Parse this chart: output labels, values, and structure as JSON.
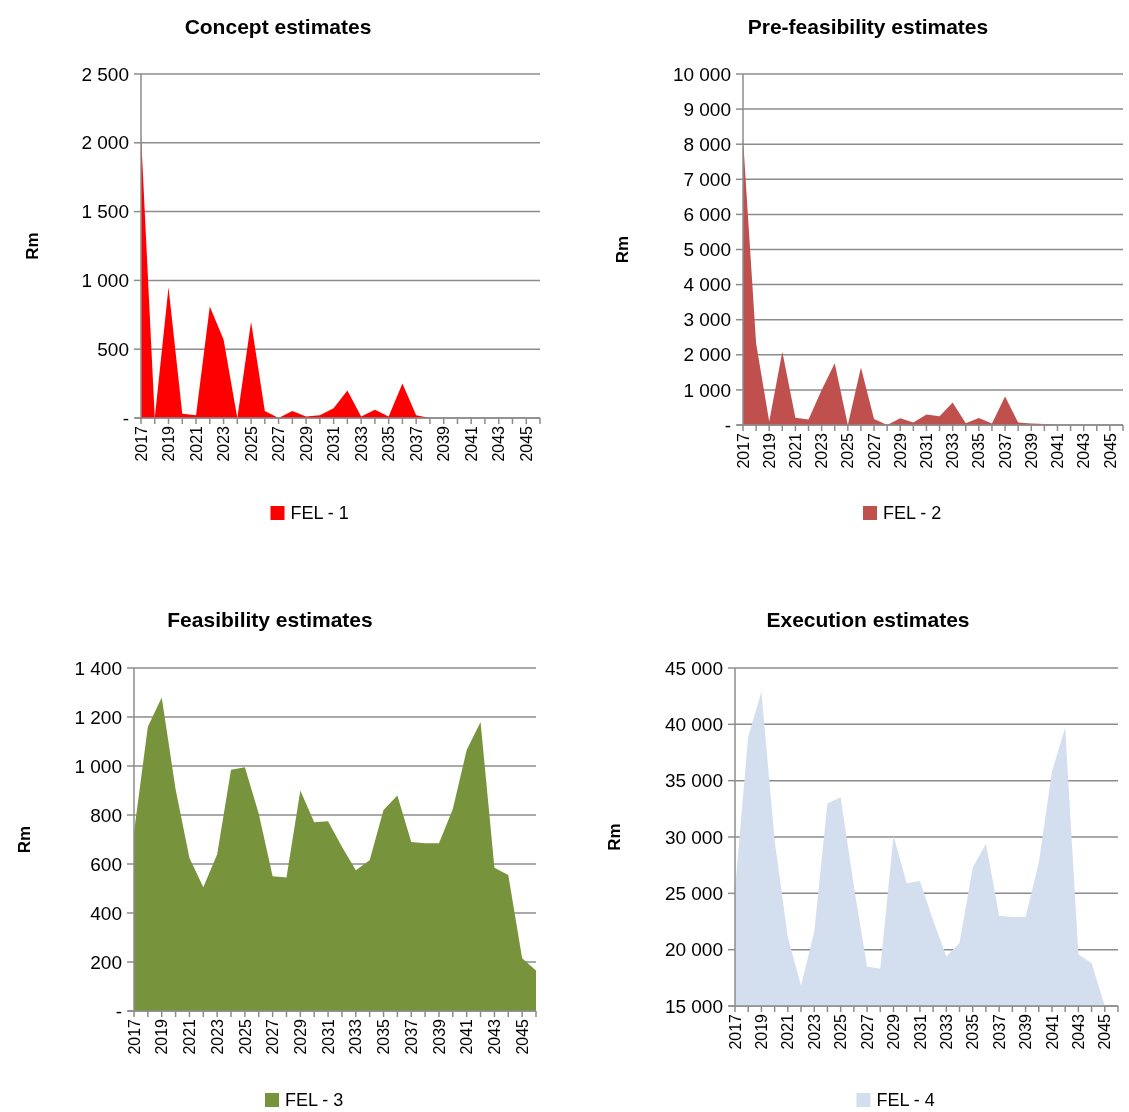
{
  "chart_data": [
    {
      "type": "area",
      "title": "Concept estimates",
      "ylabel": "Rm",
      "categories": [
        "2017",
        null,
        "2019",
        null,
        "2021",
        null,
        "2023",
        null,
        "2025",
        null,
        "2027",
        null,
        "2029",
        null,
        "2031",
        null,
        "2033",
        null,
        "2035",
        null,
        "2037",
        null,
        "2039",
        null,
        "2041",
        null,
        "2043",
        null,
        "2045",
        null
      ],
      "series": [
        {
          "name": "FEL - 1",
          "color": "#ff0000",
          "values": [
            2060,
            0,
            950,
            30,
            20,
            810,
            570,
            0,
            700,
            50,
            0,
            50,
            10,
            20,
            70,
            200,
            10,
            60,
            10,
            250,
            20,
            0,
            0,
            0,
            0,
            0,
            0,
            0,
            0,
            0
          ]
        }
      ],
      "ylim": [
        0,
        2500
      ],
      "yticks": [
        {
          "value": 0,
          "label": "-"
        },
        500,
        {
          "value": 1000,
          "label": "1 000"
        },
        {
          "value": 1500,
          "label": "1 500"
        },
        {
          "value": 2000,
          "label": "2 000"
        },
        {
          "value": 2500,
          "label": "2 500"
        }
      ],
      "grid": "y",
      "legend": "bottom"
    },
    {
      "type": "area",
      "title": "Pre-feasibility estimates",
      "ylabel": "Rm",
      "categories": [
        "2017",
        null,
        "2019",
        null,
        "2021",
        null,
        "2023",
        null,
        "2025",
        null,
        "2027",
        null,
        "2029",
        null,
        "2031",
        null,
        "2033",
        null,
        "2035",
        null,
        "2037",
        null,
        "2039",
        null,
        "2041",
        null,
        "2043",
        null,
        "2045",
        null
      ],
      "series": [
        {
          "name": "FEL - 2",
          "color": "#c0504d",
          "values": [
            8170,
            2330,
            100,
            2090,
            210,
            160,
            1000,
            1760,
            0,
            1640,
            170,
            0,
            190,
            70,
            300,
            250,
            640,
            50,
            200,
            40,
            810,
            70,
            40,
            30,
            0,
            0,
            0,
            0,
            0,
            0
          ]
        }
      ],
      "ylim": [
        0,
        10000
      ],
      "yticks": [
        {
          "value": 0,
          "label": "-"
        },
        {
          "value": 1000,
          "label": "1 000"
        },
        {
          "value": 2000,
          "label": "2 000"
        },
        {
          "value": 3000,
          "label": "3 000"
        },
        {
          "value": 4000,
          "label": "4 000"
        },
        {
          "value": 5000,
          "label": "5 000"
        },
        {
          "value": 6000,
          "label": "6 000"
        },
        {
          "value": 7000,
          "label": "7 000"
        },
        {
          "value": 8000,
          "label": "8 000"
        },
        {
          "value": 9000,
          "label": "9 000"
        },
        {
          "value": 10000,
          "label": "10 000"
        }
      ],
      "grid": "y",
      "legend": "bottom"
    },
    {
      "type": "area",
      "title": "Feasibility estimates",
      "ylabel": "Rm",
      "categories": [
        "2017",
        null,
        "2019",
        null,
        "2021",
        null,
        "2023",
        null,
        "2025",
        null,
        "2027",
        null,
        "2029",
        null,
        "2031",
        null,
        "2033",
        null,
        "2035",
        null,
        "2037",
        null,
        "2039",
        null,
        "2041",
        null,
        "2043",
        null,
        "2045",
        null
      ],
      "series": [
        {
          "name": "FEL - 3",
          "color": "#77933c",
          "values": [
            730,
            1160,
            1280,
            905,
            625,
            505,
            640,
            985,
            995,
            805,
            550,
            545,
            900,
            770,
            775,
            670,
            575,
            615,
            820,
            880,
            690,
            685,
            685,
            825,
            1065,
            1180,
            585,
            555,
            215,
            165
          ]
        }
      ],
      "ylim": [
        0,
        1400
      ],
      "yticks": [
        {
          "value": 0,
          "label": "-"
        },
        200,
        400,
        600,
        800,
        {
          "value": 1000,
          "label": "1 000"
        },
        {
          "value": 1200,
          "label": "1 200"
        },
        {
          "value": 1400,
          "label": "1 400"
        }
      ],
      "grid": "y",
      "legend": "bottom"
    },
    {
      "type": "area",
      "title": "Execution estimates",
      "ylabel": "Rm",
      "categories": [
        "2017",
        null,
        "2019",
        null,
        "2021",
        null,
        "2023",
        null,
        "2025",
        null,
        "2027",
        null,
        "2029",
        null,
        "2031",
        null,
        "2033",
        null,
        "2035",
        null,
        "2037",
        null,
        "2039",
        null,
        "2041",
        null,
        "2043",
        null,
        "2045",
        null
      ],
      "series": [
        {
          "name": "FEL - 4",
          "color": "#d3dfee",
          "values": [
            25300,
            38900,
            42900,
            29700,
            21100,
            16800,
            21600,
            33000,
            33500,
            25600,
            18500,
            18300,
            30100,
            25900,
            26100,
            22600,
            19400,
            20600,
            27300,
            29400,
            23000,
            22900,
            22900,
            27700,
            35800,
            39700,
            19600,
            18800,
            15000,
            15000
          ]
        }
      ],
      "ylim": [
        15000,
        45000
      ],
      "yticks": [
        {
          "value": 15000,
          "label": "15 000"
        },
        {
          "value": 20000,
          "label": "20 000"
        },
        {
          "value": 25000,
          "label": "25 000"
        },
        {
          "value": 30000,
          "label": "30 000"
        },
        {
          "value": 35000,
          "label": "35 000"
        },
        {
          "value": 40000,
          "label": "40 000"
        },
        {
          "value": 45000,
          "label": "45 000"
        }
      ],
      "grid": "y",
      "legend": "bottom"
    }
  ]
}
